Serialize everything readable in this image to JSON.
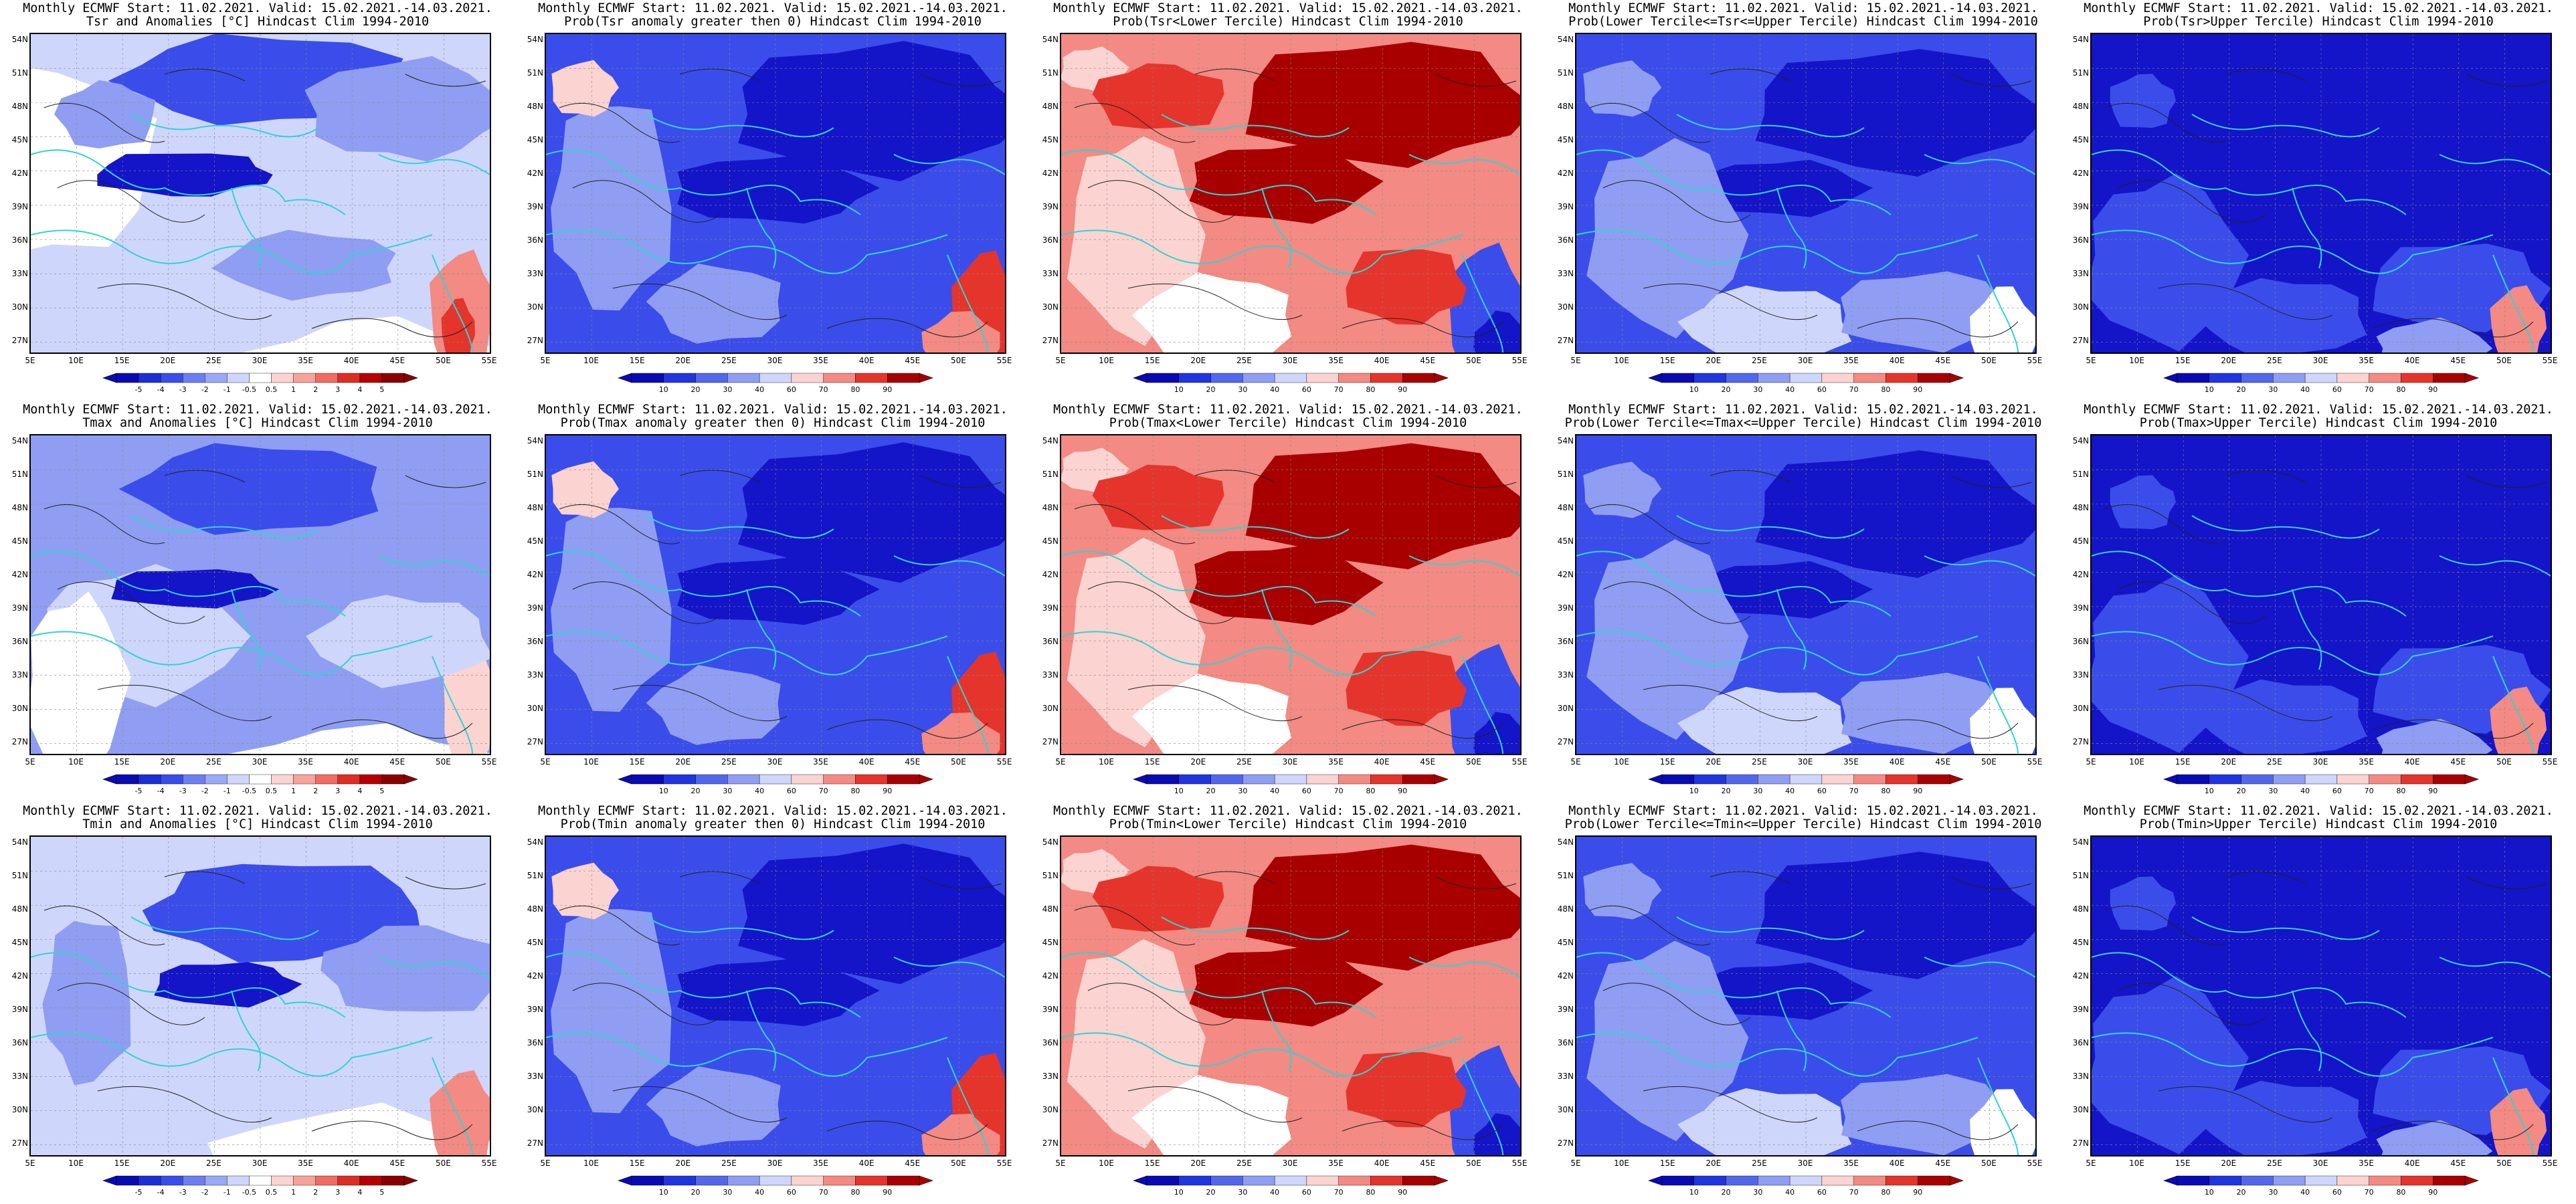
{
  "colors": {
    "deep_blue": "#1414c8",
    "mid_blue": "#3a4dea",
    "light_blue": "#8f9ef2",
    "pale_blue": "#cfd6fb",
    "white": "#ffffff",
    "pale_red": "#fbd3d0",
    "light_red": "#f38a83",
    "mid_red": "#e5342b",
    "dark_red": "#a80000",
    "coast": "#2fd4d4",
    "contour": "#222222"
  },
  "axes": {
    "lat_labels": [
      "54N",
      "51N",
      "48N",
      "45N",
      "42N",
      "39N",
      "36N",
      "33N",
      "30N",
      "27N"
    ],
    "lon_labels": [
      "5E",
      "10E",
      "15E",
      "20E",
      "25E",
      "30E",
      "35E",
      "40E",
      "45E",
      "50E",
      "55E"
    ]
  },
  "colorbars": {
    "anomaly": [
      "-5",
      "-4",
      "-3",
      "-2",
      "-1",
      "-0.5",
      "0.5",
      "1",
      "2",
      "3",
      "4",
      "5"
    ],
    "probability": [
      "10",
      "20",
      "30",
      "40",
      "60",
      "70",
      "80",
      "90"
    ]
  },
  "panels": [
    {
      "title1": "Monthly ECMWF Start: 11.02.2021. Valid: 15.02.2021.-14.03.2021.",
      "title2": "Tsr and Anomalies [°C] Hindcast Clim 1994-2010",
      "scale": "anomaly",
      "scheme": "anom_tsr"
    },
    {
      "title1": "Monthly ECMWF Start: 11.02.2021. Valid: 15.02.2021.-14.03.2021.",
      "title2": "Prob(Tsr anomaly greater then 0) Hindcast Clim 1994-2010",
      "scale": "probability",
      "scheme": "blue"
    },
    {
      "title1": "Monthly ECMWF Start: 11.02.2021. Valid: 15.02.2021.-14.03.2021.",
      "title2": "Prob(Tsr<Lower Tercile) Hindcast Clim 1994-2010",
      "scale": "probability",
      "scheme": "red"
    },
    {
      "title1": "Monthly ECMWF Start: 11.02.2021. Valid: 15.02.2021.-14.03.2021.",
      "title2": "Prob(Lower Tercile<=Tsr<=Upper Tercile) Hindcast Clim 1994-2010",
      "scale": "probability",
      "scheme": "mixed"
    },
    {
      "title1": "Monthly ECMWF Start: 11.02.2021. Valid: 15.02.2021.-14.03.2021.",
      "title2": "Prob(Tsr>Upper Tercile) Hindcast Clim 1994-2010",
      "scale": "probability",
      "scheme": "deepblue"
    },
    {
      "title1": "Monthly ECMWF Start: 11.02.2021. Valid: 15.02.2021.-14.03.2021.",
      "title2": "Tmax and Anomalies [°C] Hindcast Clim 1994-2010",
      "scale": "anomaly",
      "scheme": "anom_tmax"
    },
    {
      "title1": "Monthly ECMWF Start: 11.02.2021. Valid: 15.02.2021.-14.03.2021.",
      "title2": "Prob(Tmax anomaly greater then 0) Hindcast Clim 1994-2010",
      "scale": "probability",
      "scheme": "blue"
    },
    {
      "title1": "Monthly ECMWF Start: 11.02.2021. Valid: 15.02.2021.-14.03.2021.",
      "title2": "Prob(Tmax<Lower Tercile) Hindcast Clim 1994-2010",
      "scale": "probability",
      "scheme": "red"
    },
    {
      "title1": "Monthly ECMWF Start: 11.02.2021. Valid: 15.02.2021.-14.03.2021.",
      "title2": "Prob(Lower Tercile<=Tmax<=Upper Tercile) Hindcast Clim 1994-2010",
      "scale": "probability",
      "scheme": "mixed"
    },
    {
      "title1": "Monthly ECMWF Start: 11.02.2021. Valid: 15.02.2021.-14.03.2021.",
      "title2": "Prob(Tmax>Upper Tercile) Hindcast Clim 1994-2010",
      "scale": "probability",
      "scheme": "deepblue"
    },
    {
      "title1": "Monthly ECMWF Start: 11.02.2021. Valid: 15.02.2021.-14.03.2021.",
      "title2": "Tmin and Anomalies [°C] Hindcast Clim 1994-2010",
      "scale": "anomaly",
      "scheme": "anom_tmin"
    },
    {
      "title1": "Monthly ECMWF Start: 11.02.2021. Valid: 15.02.2021.-14.03.2021.",
      "title2": "Prob(Tmin anomaly greater then 0) Hindcast Clim 1994-2010",
      "scale": "probability",
      "scheme": "blue"
    },
    {
      "title1": "Monthly ECMWF Start: 11.02.2021. Valid: 15.02.2021.-14.03.2021.",
      "title2": "Prob(Tmin<Lower Tercile) Hindcast Clim 1994-2010",
      "scale": "probability",
      "scheme": "red"
    },
    {
      "title1": "Monthly ECMWF Start: 11.02.2021. Valid: 15.02.2021.-14.03.2021.",
      "title2": "Prob(Lower Tercile<=Tmin<=Upper Tercile) Hindcast Clim 1994-2010",
      "scale": "probability",
      "scheme": "mixed"
    },
    {
      "title1": "Monthly ECMWF Start: 11.02.2021. Valid: 15.02.2021.-14.03.2021.",
      "title2": "Prob(Tmin>Upper Tercile) Hindcast Clim 1994-2010",
      "scale": "probability",
      "scheme": "deepblue"
    }
  ]
}
